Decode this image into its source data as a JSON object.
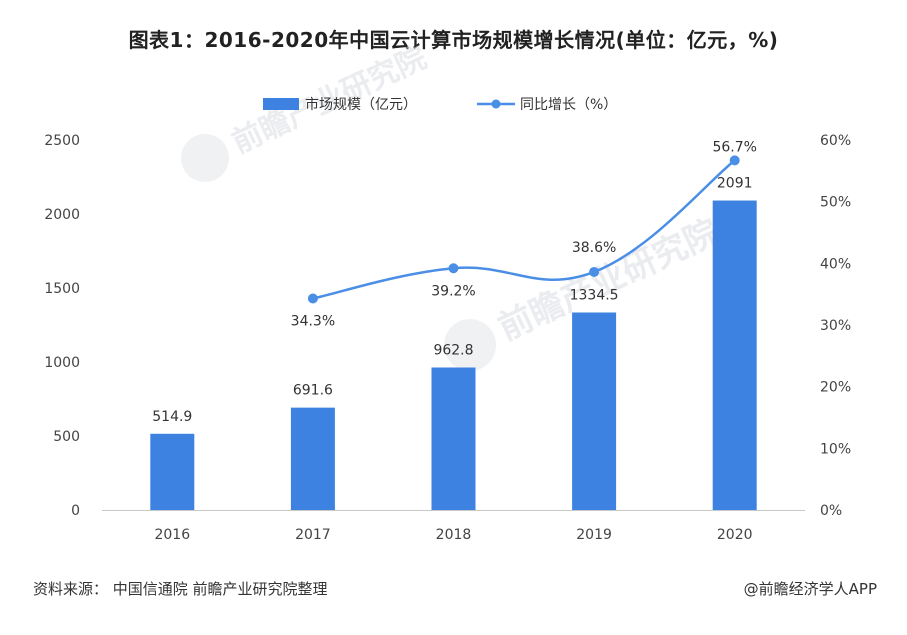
{
  "title": "图表1：2016-2020年中国云计算市场规模增长情况(单位：亿元，%)",
  "footer": {
    "source": "资料来源：  中国信通院 前瞻产业研究院整理",
    "credit": "@前瞻经济学人APP"
  },
  "watermark": {
    "text": "前瞻产业研究院"
  },
  "colors": {
    "bar": "#3d82e0",
    "line": "#4a8ee6",
    "axis": "#c8c8c8",
    "text": "#444444"
  },
  "chart_data": {
    "type": "bar",
    "title": "图表1：2016-2020年中国云计算市场规模增长情况(单位：亿元，%)",
    "categories": [
      "2016",
      "2017",
      "2018",
      "2019",
      "2020"
    ],
    "series": [
      {
        "name": "市场规模（亿元）",
        "type": "bar",
        "axis": "left",
        "values": [
          514.9,
          691.6,
          962.8,
          1334.5,
          2091
        ],
        "labels": [
          "514.9",
          "691.6",
          "962.8",
          "1334.5",
          "2091"
        ]
      },
      {
        "name": "同比增长（%）",
        "type": "line",
        "axis": "right",
        "values": [
          null,
          34.3,
          39.2,
          38.6,
          56.7
        ],
        "labels": [
          "",
          "34.3%",
          "39.2%",
          "38.6%",
          "56.7%"
        ]
      }
    ],
    "y_left": {
      "ylim": [
        0,
        2500
      ],
      "ticks": [
        0,
        500,
        1000,
        1500,
        2000,
        2500
      ],
      "tick_labels": [
        "0",
        "500",
        "1000",
        "1500",
        "2000",
        "2500"
      ]
    },
    "y_right": {
      "ylim": [
        0,
        60
      ],
      "ticks": [
        0,
        10,
        20,
        30,
        40,
        50,
        60
      ],
      "tick_labels": [
        "0%",
        "10%",
        "20%",
        "30%",
        "40%",
        "50%",
        "60%"
      ]
    },
    "legend": {
      "position": "top-center",
      "entries": [
        "市场规模（亿元）",
        "同比增长（%）"
      ]
    },
    "grid": false
  }
}
